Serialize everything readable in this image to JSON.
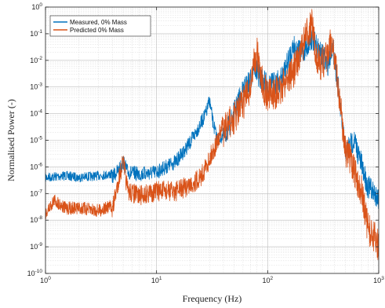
{
  "chart_data": {
    "type": "line",
    "title": "",
    "xlabel": "Frequency (Hz)",
    "ylabel": "Normalised Power (-)",
    "x_scale": "log",
    "y_scale": "log",
    "xlim": [
      1,
      1000
    ],
    "ylim": [
      1e-10,
      1
    ],
    "grid": true,
    "legend_position": "top-left",
    "x_ticks": [
      {
        "value": 1,
        "base": "10",
        "exp": "0"
      },
      {
        "value": 10,
        "base": "10",
        "exp": "1"
      },
      {
        "value": 100,
        "base": "10",
        "exp": "2"
      },
      {
        "value": 1000,
        "base": "10",
        "exp": "3"
      }
    ],
    "y_ticks": [
      {
        "value": 1e-10,
        "base": "10",
        "exp": "-10"
      },
      {
        "value": 1e-09,
        "base": "10",
        "exp": "-9"
      },
      {
        "value": 1e-08,
        "base": "10",
        "exp": "-8"
      },
      {
        "value": 1e-07,
        "base": "10",
        "exp": "-7"
      },
      {
        "value": 1e-06,
        "base": "10",
        "exp": "-6"
      },
      {
        "value": 1e-05,
        "base": "10",
        "exp": "-5"
      },
      {
        "value": 0.0001,
        "base": "10",
        "exp": "-4"
      },
      {
        "value": 0.001,
        "base": "10",
        "exp": "-3"
      },
      {
        "value": 0.01,
        "base": "10",
        "exp": "-2"
      },
      {
        "value": 0.1,
        "base": "10",
        "exp": "-1"
      },
      {
        "value": 1,
        "base": "10",
        "exp": "0"
      }
    ],
    "series": [
      {
        "name": "Measured, 0% Mass",
        "color": "#0072BD",
        "x": [
          1,
          1.5,
          2,
          3,
          4,
          4.6,
          5,
          5.5,
          7,
          10,
          15,
          20,
          25,
          28,
          30,
          32,
          35,
          40,
          50,
          60,
          70,
          75,
          80,
          90,
          100,
          130,
          150,
          170,
          200,
          230,
          250,
          270,
          300,
          350,
          380,
          400,
          450,
          500,
          600,
          800,
          1000
        ],
        "y": [
          6e-07,
          7e-07,
          6e-07,
          7e-07,
          8e-07,
          1.5e-06,
          3e-06,
          1.2e-06,
          1e-06,
          1.2e-06,
          3e-06,
          1.5e-05,
          8e-05,
          0.0002,
          0.0006,
          0.0001,
          2e-05,
          3e-05,
          0.0003,
          0.002,
          0.005,
          0.02,
          0.01,
          0.005,
          0.003,
          0.005,
          0.02,
          0.1,
          0.05,
          0.1,
          0.2,
          0.1,
          0.05,
          0.02,
          0.1,
          0.04,
          0.0005,
          1e-05,
          3e-05,
          5e-07,
          2e-07
        ]
      },
      {
        "name": "Predicted 0% Mass",
        "color": "#D95319",
        "x": [
          1,
          1.2,
          1.5,
          2,
          3,
          4,
          4.6,
          5,
          5.5,
          7,
          10,
          15,
          20,
          25,
          30,
          35,
          40,
          50,
          60,
          70,
          75,
          80,
          90,
          100,
          130,
          150,
          170,
          200,
          230,
          250,
          270,
          300,
          350,
          380,
          400,
          450,
          500,
          600,
          700,
          800,
          1000
        ],
        "y": [
          3e-08,
          1e-07,
          5e-08,
          5e-08,
          4e-08,
          6e-08,
          1e-06,
          4e-06,
          3e-07,
          2e-07,
          3e-07,
          3e-07,
          5e-07,
          1e-06,
          5e-06,
          2e-05,
          0.0001,
          0.0003,
          0.001,
          0.004,
          0.03,
          0.08,
          0.005,
          0.002,
          0.003,
          0.01,
          0.015,
          0.1,
          0.5,
          0.9,
          0.08,
          0.03,
          0.06,
          0.3,
          0.05,
          0.001,
          2e-05,
          3e-06,
          5e-07,
          2e-08,
          5e-09
        ]
      }
    ]
  }
}
